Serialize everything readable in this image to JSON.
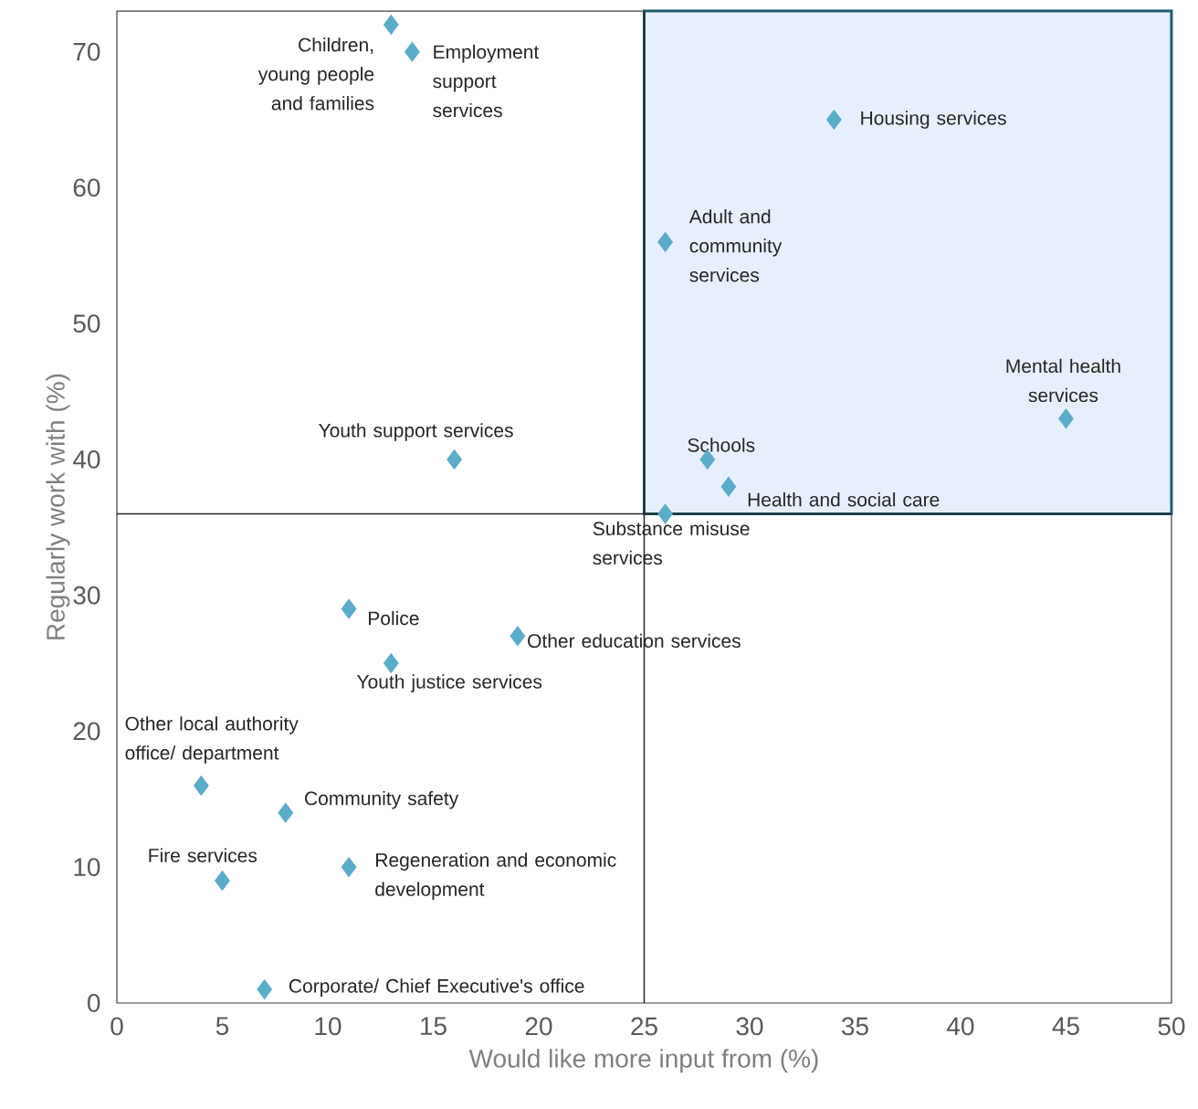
{
  "chart_data": {
    "type": "scatter",
    "xlabel": "Would like more input from (%)",
    "ylabel": "Regularly work with (%)",
    "x": [
      13,
      14,
      34,
      26,
      45,
      28,
      29,
      26,
      16,
      11,
      19,
      13,
      4,
      8,
      5,
      11,
      7
    ],
    "values": [
      72,
      70,
      65,
      56,
      43,
      40,
      38,
      36,
      40,
      29,
      27,
      25,
      16,
      14,
      9,
      10,
      1
    ],
    "color": "#5aacc8",
    "marker": "diamond",
    "grid": false,
    "xlim": [
      0,
      50
    ],
    "xticks": [
      0,
      5,
      10,
      15,
      20,
      25,
      30,
      35,
      40,
      45,
      50
    ],
    "ylim": [
      0,
      73
    ],
    "yticks": [
      0,
      10,
      20,
      30,
      40,
      50,
      60,
      70
    ],
    "ref_lines": [
      {
        "axis": "x",
        "value": 25,
        "color": "#262626"
      },
      {
        "axis": "y",
        "value": 36,
        "color": "#262626"
      }
    ],
    "bands": [
      {
        "axis": "x",
        "from": 25,
        "to": 50,
        "color": "#e8effc"
      }
    ],
    "annotations": [
      {
        "text": "Children, young people and families",
        "x": 13,
        "y": 72
      },
      {
        "text": "Employment support services",
        "x": 14,
        "y": 70
      },
      {
        "text": "Housing services",
        "x": 34,
        "y": 65
      },
      {
        "text": "Adult and community services",
        "x": 26,
        "y": 56
      },
      {
        "text": "Mental health services",
        "x": 45,
        "y": 43
      },
      {
        "text": "Schools",
        "x": 28,
        "y": 40
      },
      {
        "text": "Health and social care",
        "x": 29,
        "y": 38
      },
      {
        "text": "Substance misuse services",
        "x": 26,
        "y": 36
      },
      {
        "text": "Youth support services",
        "x": 16,
        "y": 40
      },
      {
        "text": "Police",
        "x": 11,
        "y": 29
      },
      {
        "text": "Other education services",
        "x": 19,
        "y": 27
      },
      {
        "text": "Youth justice services",
        "x": 13,
        "y": 25
      },
      {
        "text": "Other local authority office/ department",
        "x": 4,
        "y": 16
      },
      {
        "text": "Community safety",
        "x": 8,
        "y": 14
      },
      {
        "text": "Fire services",
        "x": 5,
        "y": 9
      },
      {
        "text": "Regeneration and economic development",
        "x": 11,
        "y": 10
      },
      {
        "text": "Corporate/ Chief Executive's office",
        "x": 7,
        "y": 1
      }
    ]
  }
}
